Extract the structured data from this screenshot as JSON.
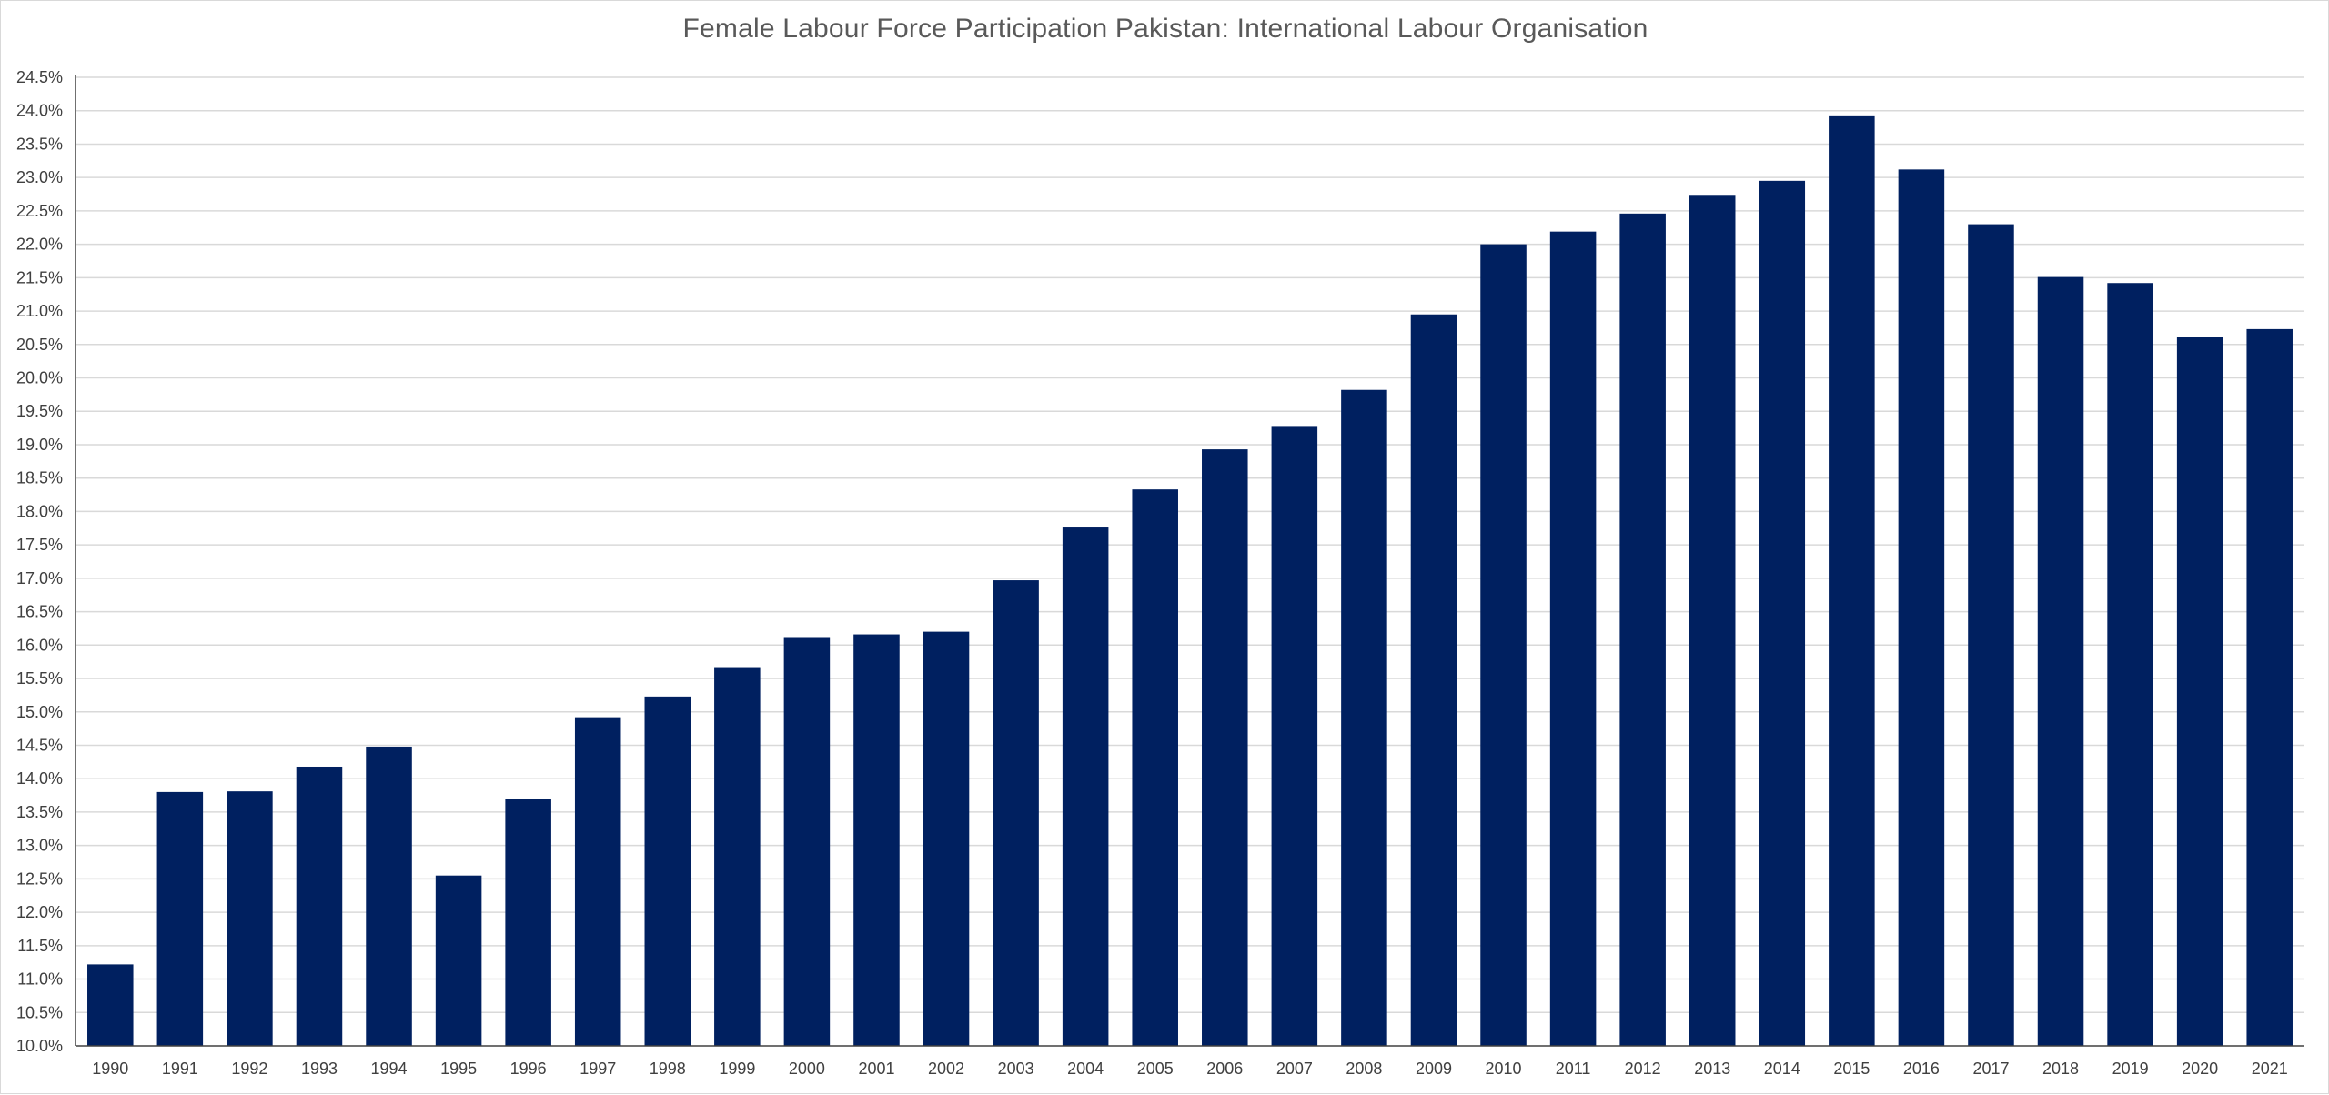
{
  "chart_data": {
    "type": "bar",
    "title": "Female Labour Force Participation Pakistan: International Labour Organisation",
    "xlabel": "",
    "ylabel": "",
    "categories": [
      "1990",
      "1991",
      "1992",
      "1993",
      "1994",
      "1995",
      "1996",
      "1997",
      "1998",
      "1999",
      "2000",
      "2001",
      "2002",
      "2003",
      "2004",
      "2005",
      "2006",
      "2007",
      "2008",
      "2009",
      "2010",
      "2011",
      "2012",
      "2013",
      "2014",
      "2015",
      "2016",
      "2017",
      "2018",
      "2019",
      "2020",
      "2021"
    ],
    "values": [
      11.22,
      13.8,
      13.81,
      14.18,
      14.48,
      12.55,
      13.7,
      14.92,
      15.23,
      15.67,
      16.12,
      16.16,
      16.2,
      16.97,
      17.76,
      18.33,
      18.93,
      19.28,
      19.82,
      20.95,
      22.0,
      22.19,
      22.46,
      22.74,
      22.95,
      23.93,
      23.12,
      22.3,
      21.51,
      21.42,
      20.61,
      20.73
    ],
    "ylim": [
      10.0,
      24.5
    ],
    "ytick_step": 0.5,
    "ytick_labels": [
      "10.0%",
      "10.5%",
      "11.0%",
      "11.5%",
      "12.0%",
      "12.5%",
      "13.0%",
      "13.5%",
      "14.0%",
      "14.5%",
      "15.0%",
      "15.5%",
      "16.0%",
      "16.5%",
      "17.0%",
      "17.5%",
      "18.0%",
      "18.5%",
      "19.0%",
      "19.5%",
      "20.0%",
      "20.5%",
      "21.0%",
      "21.5%",
      "22.0%",
      "22.5%",
      "23.0%",
      "23.5%",
      "24.0%",
      "24.5%"
    ],
    "bar_color": "#002060",
    "gridline_color": "#d9d9d9",
    "grid": true,
    "legend": "none"
  }
}
